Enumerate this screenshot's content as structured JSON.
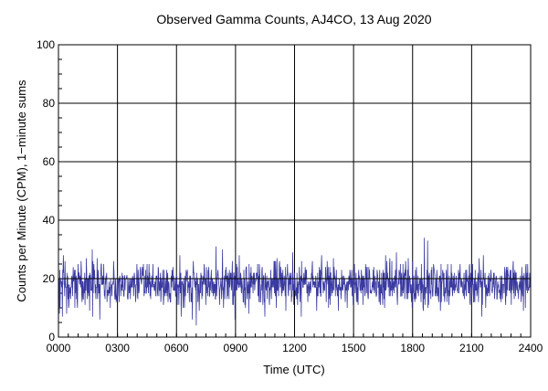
{
  "chart_data": {
    "type": "line",
    "title": "Observed Gamma Counts, AJ4CO, 13 Aug 2020",
    "xlabel": "Time (UTC)",
    "ylabel": "Counts per Minute (CPM), 1−minute sums",
    "xlim": [
      0,
      1440
    ],
    "ylim": [
      0,
      100
    ],
    "x_unit": "minutes of day (UTC)",
    "x_ticks": [
      0,
      180,
      360,
      540,
      720,
      900,
      1080,
      1260,
      1440
    ],
    "x_tick_labels": [
      "0000",
      "0300",
      "0600",
      "0900",
      "1200",
      "1500",
      "1800",
      "2100",
      "2400"
    ],
    "y_ticks": [
      0,
      20,
      40,
      60,
      80,
      100
    ],
    "y_tick_labels": [
      "0",
      "20",
      "40",
      "60",
      "80",
      "100"
    ],
    "grid": true,
    "reference_line": {
      "y": 20,
      "color": "#000000"
    },
    "series": [
      {
        "color": "#3a3aa0",
        "sampling": "1-minute sums",
        "n_points": 1440,
        "mean": 18,
        "typical_min": 10,
        "typical_max": 26,
        "observed_min": 4,
        "observed_max": 34,
        "notable_peaks": [
          {
            "x": 370,
            "y": 28
          },
          {
            "x": 480,
            "y": 31
          },
          {
            "x": 500,
            "y": 30
          },
          {
            "x": 1115,
            "y": 34
          },
          {
            "x": 1125,
            "y": 33
          }
        ],
        "notable_dips": [
          {
            "x": 420,
            "y": 4
          },
          {
            "x": 1290,
            "y": 7
          }
        ]
      }
    ]
  }
}
